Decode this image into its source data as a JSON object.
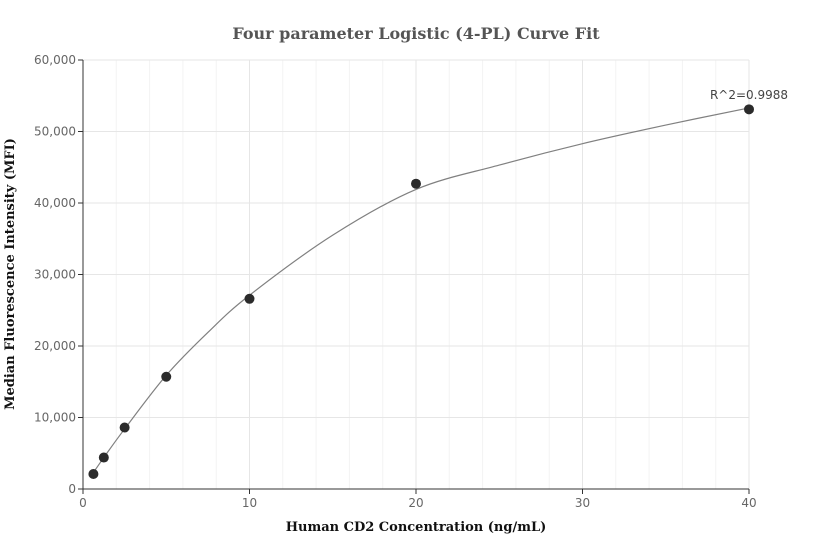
{
  "chart_data": {
    "type": "scatter",
    "title": "Four parameter Logistic (4-PL) Curve Fit",
    "xlabel": "Human CD2 Concentration (ng/mL)",
    "ylabel": "Median Fluorescence Intensity (MFI)",
    "xlim": [
      0,
      40
    ],
    "ylim": [
      0,
      60000
    ],
    "x_ticks": [
      0,
      10,
      20,
      30,
      40
    ],
    "x_tick_labels": [
      "0",
      "10",
      "20",
      "30",
      "40"
    ],
    "y_ticks": [
      0,
      10000,
      20000,
      30000,
      40000,
      50000,
      60000
    ],
    "y_tick_labels": [
      "0",
      "10,000",
      "20,000",
      "30,000",
      "40,000",
      "50,000",
      "60,000"
    ],
    "grid": true,
    "legend": "none",
    "annotation": "R^2=0.9988",
    "series": [
      {
        "kind": "points",
        "color": "#2b2b2b",
        "x": [
          0.625,
          1.25,
          2.5,
          5,
          10,
          20,
          40
        ],
        "y": [
          2100,
          4400,
          8600,
          15700,
          26600,
          42700,
          53100
        ]
      },
      {
        "kind": "fit-curve",
        "color": "#808080",
        "x": [
          0.625,
          1.25,
          2.5,
          5,
          7.5,
          10,
          15,
          20,
          25,
          30,
          35,
          40
        ],
        "y": [
          2300,
          4400,
          8400,
          15900,
          21900,
          27100,
          35500,
          41900,
          45300,
          48300,
          50900,
          53300
        ]
      }
    ]
  }
}
